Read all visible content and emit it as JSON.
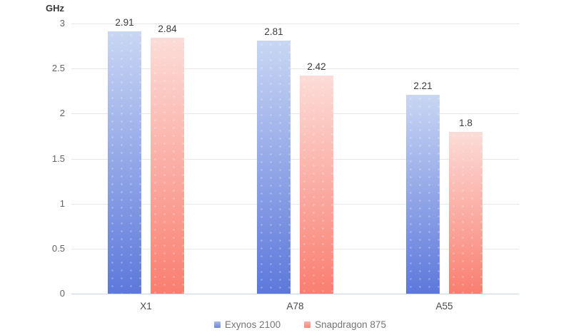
{
  "chart_data": {
    "type": "bar",
    "title": "",
    "ylabel": "GHz",
    "xlabel": "",
    "categories": [
      "X1",
      "A78",
      "A55"
    ],
    "series": [
      {
        "name": "Exynos 2100",
        "values": [
          2.91,
          2.81,
          2.21
        ],
        "value_labels": [
          "2.91",
          "2.81",
          "2.21"
        ],
        "gradient_top": "#c9d6f3",
        "gradient_bottom": "#5d78db",
        "legend_gradient_top": "#a9bce8",
        "legend_gradient_bottom": "#6d87d8"
      },
      {
        "name": "Snapdragon 875",
        "values": [
          2.84,
          2.42,
          1.8
        ],
        "value_labels": [
          "2.84",
          "2.42",
          "1.8"
        ],
        "gradient_top": "#fcdcd8",
        "gradient_bottom": "#f97e70",
        "legend_gradient_top": "#f6b1ab",
        "legend_gradient_bottom": "#f8887a"
      }
    ],
    "yticks": [
      3,
      2.5,
      2,
      1.5,
      1,
      0.5,
      0
    ],
    "ytick_labels": [
      "3",
      "2.5",
      "2",
      "1.5",
      "1",
      "0.5",
      "0"
    ],
    "ylim": [
      0,
      3
    ],
    "grid": true,
    "legend_position": "bottom",
    "gridline_color": "#e9e7e4",
    "baseline_color": "#ccd5e3",
    "background_color": "#ffffff"
  }
}
